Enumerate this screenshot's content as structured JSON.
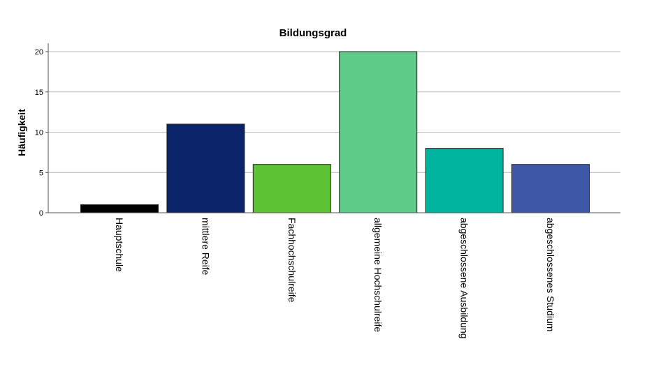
{
  "chart_data": {
    "type": "bar",
    "title": "Bildungsgrad",
    "xlabel": "",
    "ylabel": "Häufigkeit",
    "categories": [
      "Hauptschule",
      "mittlere Reife",
      "Fachhochschulreife",
      "allgemeine Hochschulreife",
      "abgeschlossene Ausbildung",
      "abgeschlossenes Studium"
    ],
    "values": [
      1,
      11,
      6,
      20,
      8,
      6
    ],
    "colors": [
      "#000000",
      "#0b2469",
      "#5ec334",
      "#5fca89",
      "#00b39e",
      "#3d58a6"
    ],
    "ylim": [
      0,
      20
    ],
    "yticks": [
      "0",
      "5",
      "10",
      "15",
      "20"
    ],
    "grid": true,
    "legend": "none"
  }
}
